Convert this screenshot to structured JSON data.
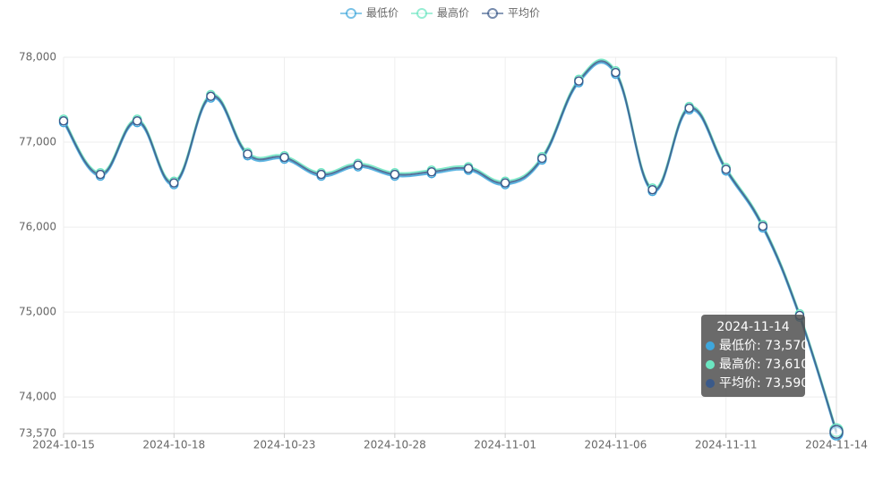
{
  "chart_data": {
    "type": "line",
    "categories": [
      "2024-10-15",
      null,
      null,
      "2024-10-18",
      null,
      null,
      "2024-10-23",
      null,
      null,
      "2024-10-28",
      null,
      null,
      "2024-11-01",
      null,
      null,
      "2024-11-06",
      null,
      null,
      "2024-11-11",
      null,
      null,
      "2024-11-14"
    ],
    "series": [
      {
        "name": "最低价",
        "color": "#3fa7dc",
        "values": [
          77230,
          76600,
          77230,
          76500,
          77520,
          76840,
          76800,
          76600,
          76710,
          76600,
          76630,
          76670,
          76500,
          76790,
          77700,
          77800,
          76420,
          77380,
          76660,
          75990,
          74940,
          73570
        ]
      },
      {
        "name": "最高价",
        "color": "#6be6c1",
        "values": [
          77270,
          76640,
          77270,
          76540,
          77560,
          76880,
          76840,
          76640,
          76750,
          76640,
          76670,
          76710,
          76540,
          76830,
          77740,
          77840,
          76460,
          77420,
          76700,
          76030,
          74980,
          73610
        ]
      },
      {
        "name": "平均价",
        "color": "#3b5a8a",
        "values": [
          77250,
          76620,
          77250,
          76520,
          77540,
          76860,
          76820,
          76620,
          76730,
          76620,
          76650,
          76690,
          76520,
          76810,
          77720,
          77820,
          76440,
          77400,
          76680,
          76010,
          74960,
          73590
        ]
      }
    ],
    "ylim": [
      73570,
      78000
    ],
    "yticks": [
      {
        "value": 73570,
        "label": "73,570"
      },
      {
        "value": 74000,
        "label": "74,000"
      },
      {
        "value": 75000,
        "label": "75,000"
      },
      {
        "value": 76000,
        "label": "76,000"
      },
      {
        "value": 77000,
        "label": "77,000"
      },
      {
        "value": 78000,
        "label": "78,000"
      }
    ],
    "grid": true,
    "legend": "top",
    "tooltip": {
      "values": [
        "73,570",
        "73,610",
        "73,590"
      ]
    }
  }
}
